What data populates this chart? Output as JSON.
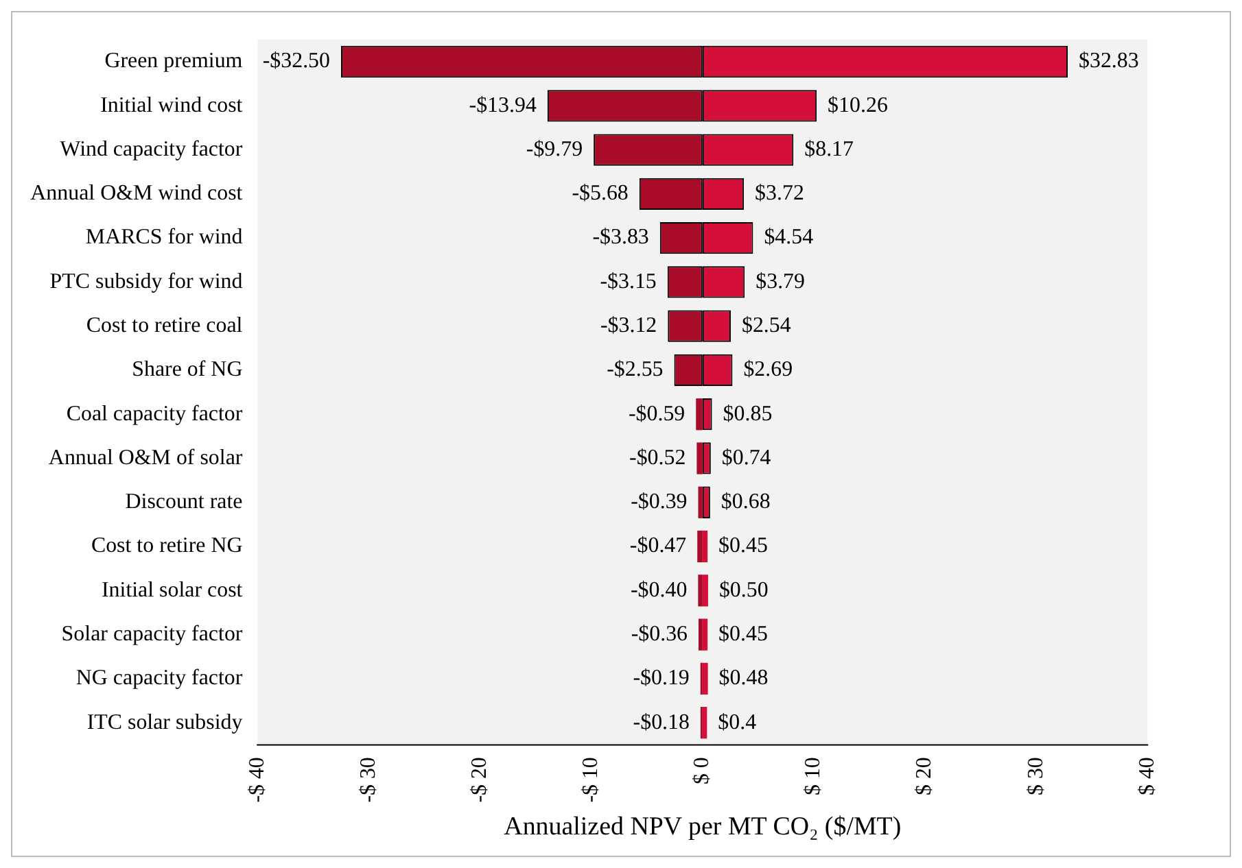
{
  "chart_data": {
    "type": "bar",
    "orientation": "horizontal",
    "stacked": true,
    "xlabel": "Annualized NPV per MT CO₂ ($/MT)",
    "categories": [
      "Green premium",
      "Initial wind cost",
      "Wind capacity factor",
      "Annual O&M wind cost",
      "MARCS for wind",
      "PTC subsidy for wind",
      "Cost to retire coal",
      "Share of NG",
      "Coal capacity factor",
      "Annual O&M of solar",
      "Discount rate",
      "Cost to retire NG",
      "Initial solar cost",
      "Solar capacity factor",
      "NG capacity factor",
      "ITC solar subsidy"
    ],
    "series": [
      {
        "color": "#a80c28",
        "values": [
          -32.5,
          -13.94,
          -9.79,
          -5.68,
          -3.83,
          -3.15,
          -3.12,
          -2.55,
          -0.59,
          -0.52,
          -0.39,
          -0.47,
          -0.4,
          -0.36,
          -0.19,
          -0.18
        ],
        "value_labels": [
          "-$32.50",
          "-$13.94",
          "-$9.79",
          "-$5.68",
          "-$3.83",
          "-$3.15",
          "-$3.12",
          "-$2.55",
          "-$0.59",
          "-$0.52",
          "-$0.39",
          "-$0.47",
          "-$0.40",
          "-$0.36",
          "-$0.19",
          "-$0.18"
        ]
      },
      {
        "color": "#d4103a",
        "values": [
          32.83,
          10.26,
          8.17,
          3.72,
          4.54,
          3.79,
          2.54,
          2.69,
          0.85,
          0.74,
          0.68,
          0.45,
          0.5,
          0.45,
          0.48,
          0.4
        ],
        "value_labels": [
          "$32.83",
          "$10.26",
          "$8.17",
          "$3.72",
          "$4.54",
          "$3.79",
          "$2.54",
          "$2.69",
          "$0.85",
          "$0.74",
          "$0.68",
          "$0.45",
          "$0.50",
          "$0.45",
          "$0.48",
          "$0.4"
        ]
      }
    ],
    "xlim": [
      -40,
      40
    ],
    "xticks": [
      {
        "value": -40,
        "label": "-$ 40"
      },
      {
        "value": -30,
        "label": "-$ 30"
      },
      {
        "value": -20,
        "label": "-$ 20"
      },
      {
        "value": -10,
        "label": "-$ 10"
      },
      {
        "value": 0,
        "label": "$ 0"
      },
      {
        "value": 10,
        "label": "$ 10"
      },
      {
        "value": 20,
        "label": "$ 20"
      },
      {
        "value": 30,
        "label": "$ 30"
      },
      {
        "value": 40,
        "label": "$ 40"
      }
    ],
    "grid": false,
    "legend": false
  }
}
